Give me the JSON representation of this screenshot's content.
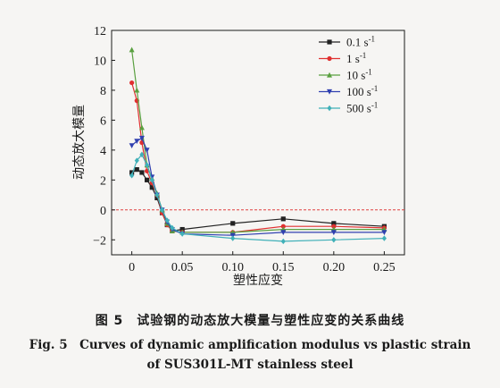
{
  "chart_data": {
    "type": "line",
    "xlabel": "塑性应变",
    "ylabel": "动态放大模量",
    "xlim": [
      -0.02,
      0.27
    ],
    "ylim": [
      -3,
      12
    ],
    "x_ticks": [
      0,
      0.05,
      0.1,
      0.15,
      0.2,
      0.25
    ],
    "x_tick_labels": [
      "0",
      "0.05",
      "0.10",
      "0.15",
      "0.20",
      "0.25"
    ],
    "y_ticks": [
      -2,
      0,
      2,
      4,
      6,
      8,
      10,
      12
    ],
    "y_tick_labels": [
      "−2",
      "0",
      "2",
      "4",
      "6",
      "8",
      "10",
      "12"
    ],
    "reference_line": {
      "y": 0,
      "color": "#e04040",
      "style": "dashed"
    },
    "legend": {
      "placement": "top-right"
    },
    "series": [
      {
        "name": "0.1 s",
        "superscript": "-1",
        "color": "#222222",
        "marker": "square",
        "points": [
          [
            0,
            2.5
          ],
          [
            0.005,
            2.7
          ],
          [
            0.01,
            2.5
          ],
          [
            0.015,
            2
          ],
          [
            0.02,
            1.5
          ],
          [
            0.025,
            0.8
          ],
          [
            0.03,
            -0.2
          ],
          [
            0.035,
            -1
          ],
          [
            0.04,
            -1.4
          ],
          [
            0.05,
            -1.3
          ],
          [
            0.1,
            -0.9
          ],
          [
            0.15,
            -0.6
          ],
          [
            0.2,
            -0.9
          ],
          [
            0.25,
            -1.1
          ]
        ]
      },
      {
        "name": "1 s",
        "superscript": "-1",
        "color": "#e03030",
        "marker": "circle",
        "points": [
          [
            0,
            8.5
          ],
          [
            0.005,
            7.3
          ],
          [
            0.01,
            4.5
          ],
          [
            0.015,
            2.6
          ],
          [
            0.02,
            1.8
          ],
          [
            0.025,
            1
          ],
          [
            0.03,
            -0.2
          ],
          [
            0.035,
            -1
          ],
          [
            0.04,
            -1.4
          ],
          [
            0.05,
            -1.5
          ],
          [
            0.1,
            -1.5
          ],
          [
            0.15,
            -1.1
          ],
          [
            0.2,
            -1.1
          ],
          [
            0.25,
            -1.2
          ]
        ]
      },
      {
        "name": "10 s",
        "superscript": "-1",
        "color": "#5aa040",
        "marker": "triangle-up",
        "points": [
          [
            0,
            10.7
          ],
          [
            0.005,
            8
          ],
          [
            0.01,
            5.5
          ],
          [
            0.015,
            3
          ],
          [
            0.02,
            2.1
          ],
          [
            0.025,
            1.1
          ],
          [
            0.03,
            0
          ],
          [
            0.035,
            -0.9
          ],
          [
            0.04,
            -1.4
          ],
          [
            0.05,
            -1.5
          ],
          [
            0.1,
            -1.5
          ],
          [
            0.15,
            -1.3
          ],
          [
            0.2,
            -1.3
          ],
          [
            0.25,
            -1.3
          ]
        ]
      },
      {
        "name": "100 s",
        "superscript": "-1",
        "color": "#3040b0",
        "marker": "triangle-down",
        "points": [
          [
            0,
            4.3
          ],
          [
            0.005,
            4.6
          ],
          [
            0.01,
            4.8
          ],
          [
            0.015,
            4
          ],
          [
            0.02,
            2.2
          ],
          [
            0.025,
            1
          ],
          [
            0.03,
            0
          ],
          [
            0.035,
            -0.8
          ],
          [
            0.04,
            -1.3
          ],
          [
            0.05,
            -1.6
          ],
          [
            0.1,
            -1.7
          ],
          [
            0.15,
            -1.5
          ],
          [
            0.2,
            -1.5
          ],
          [
            0.25,
            -1.5
          ]
        ]
      },
      {
        "name": "500 s",
        "superscript": "-1",
        "color": "#40b0b8",
        "marker": "diamond",
        "points": [
          [
            0,
            2.3
          ],
          [
            0.005,
            3.3
          ],
          [
            0.01,
            3.7
          ],
          [
            0.015,
            3
          ],
          [
            0.02,
            2
          ],
          [
            0.025,
            1
          ],
          [
            0.03,
            0
          ],
          [
            0.035,
            -0.7
          ],
          [
            0.04,
            -1.2
          ],
          [
            0.05,
            -1.6
          ],
          [
            0.1,
            -1.9
          ],
          [
            0.15,
            -2.1
          ],
          [
            0.2,
            -2
          ],
          [
            0.25,
            -1.9
          ]
        ]
      }
    ]
  },
  "caption": {
    "cn": "图 5　试验钢的动态放大模量与塑性应变的关系曲线",
    "en_line1": "Fig. 5　Curves of dynamic amplification modulus vs plastic strain",
    "en_line2": "of SUS301L-MT stainless steel"
  }
}
